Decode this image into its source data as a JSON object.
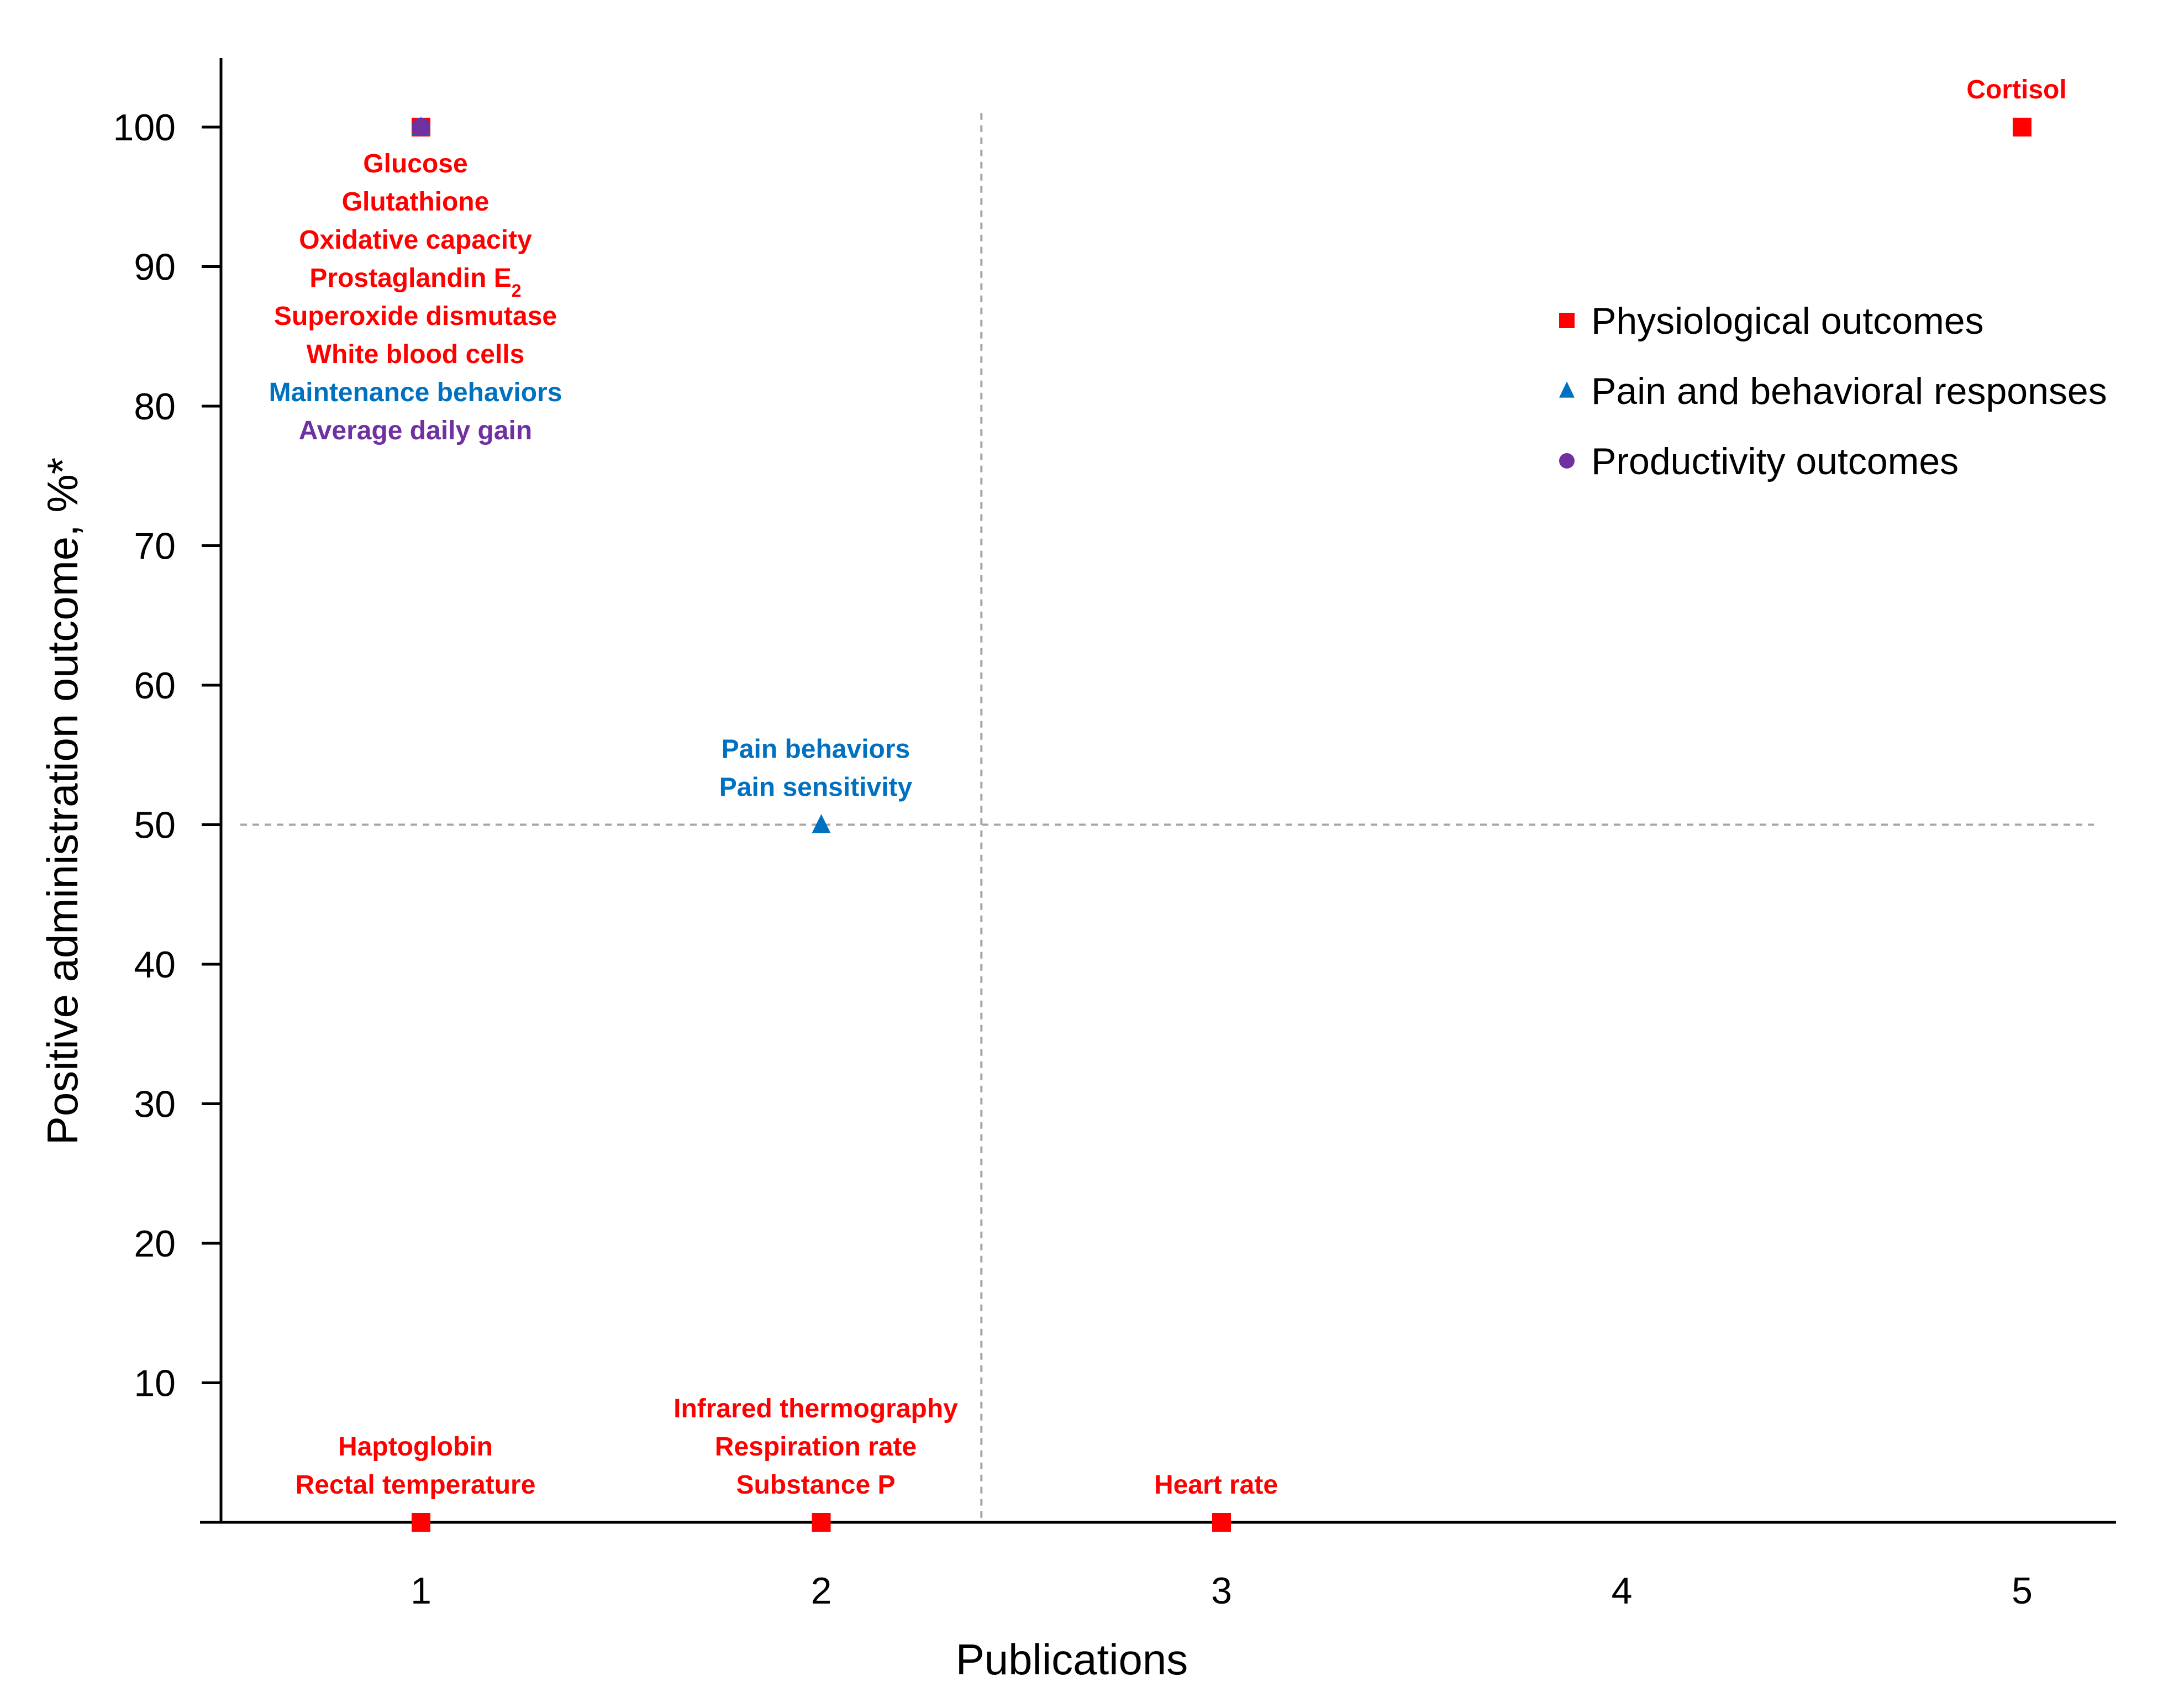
{
  "chart_data": {
    "type": "scatter",
    "title": "",
    "xlabel": "Publications",
    "ylabel": "Positive administration outcome, %*",
    "xlim": [
      0.5,
      5.25
    ],
    "ylim": [
      0,
      105
    ],
    "x_ticks": [
      "1",
      "2",
      "3",
      "4",
      "5"
    ],
    "y_ticks": [
      "10",
      "20",
      "30",
      "40",
      "50",
      "60",
      "70",
      "80",
      "90",
      "100"
    ],
    "grid": false,
    "reference_lines": {
      "x": 2.4,
      "y": 50
    },
    "legend_position": "top-right",
    "colors": {
      "physiological": "#ff0000",
      "pain": "#0070c0",
      "productivity": "#7030a0",
      "reference": "#a6a6a6",
      "axis": "#000000"
    },
    "series": [
      {
        "name": "Physiological outcomes",
        "marker": "square",
        "color": "#ff0000",
        "points": [
          {
            "x": 1,
            "y": 100
          },
          {
            "x": 5,
            "y": 100
          },
          {
            "x": 1,
            "y": 0
          },
          {
            "x": 2,
            "y": 0
          },
          {
            "x": 3,
            "y": 0
          }
        ]
      },
      {
        "name": "Pain and behavioral responses",
        "marker": "triangle",
        "color": "#0070c0",
        "points": [
          {
            "x": 1,
            "y": 100
          },
          {
            "x": 2,
            "y": 50
          }
        ]
      },
      {
        "name": "Productivity outcomes",
        "marker": "circle",
        "color": "#7030a0",
        "points": [
          {
            "x": 1,
            "y": 100
          }
        ]
      }
    ],
    "annotations": [
      {
        "x": 1,
        "y": 100,
        "position": "below",
        "lines": [
          {
            "text": "Glucose",
            "color": "#ff0000"
          },
          {
            "text": "Glutathione",
            "color": "#ff0000"
          },
          {
            "text": "Oxidative capacity",
            "color": "#ff0000"
          },
          {
            "text": "Prostaglandin E",
            "sub": "2",
            "color": "#ff0000"
          },
          {
            "text": "Superoxide dismutase",
            "color": "#ff0000"
          },
          {
            "text": "White blood cells",
            "color": "#ff0000"
          },
          {
            "text": "Maintenance behaviors",
            "color": "#0070c0"
          },
          {
            "text": "Average daily gain",
            "color": "#7030a0"
          }
        ]
      },
      {
        "x": 5,
        "y": 100,
        "position": "above",
        "lines": [
          {
            "text": "Cortisol",
            "color": "#ff0000"
          }
        ]
      },
      {
        "x": 2,
        "y": 50,
        "position": "above",
        "lines": [
          {
            "text": "Pain behaviors",
            "color": "#0070c0"
          },
          {
            "text": "Pain sensitivity",
            "color": "#0070c0"
          }
        ]
      },
      {
        "x": 1,
        "y": 0,
        "position": "above",
        "lines": [
          {
            "text": "Haptoglobin",
            "color": "#ff0000"
          },
          {
            "text": "Rectal temperature",
            "color": "#ff0000"
          }
        ]
      },
      {
        "x": 2,
        "y": 0,
        "position": "above",
        "lines": [
          {
            "text": "Infrared thermography",
            "color": "#ff0000"
          },
          {
            "text": "Respiration rate",
            "color": "#ff0000"
          },
          {
            "text": "Substance P",
            "color": "#ff0000"
          }
        ]
      },
      {
        "x": 3,
        "y": 0,
        "position": "above",
        "lines": [
          {
            "text": "Heart rate",
            "color": "#ff0000"
          }
        ]
      }
    ]
  }
}
